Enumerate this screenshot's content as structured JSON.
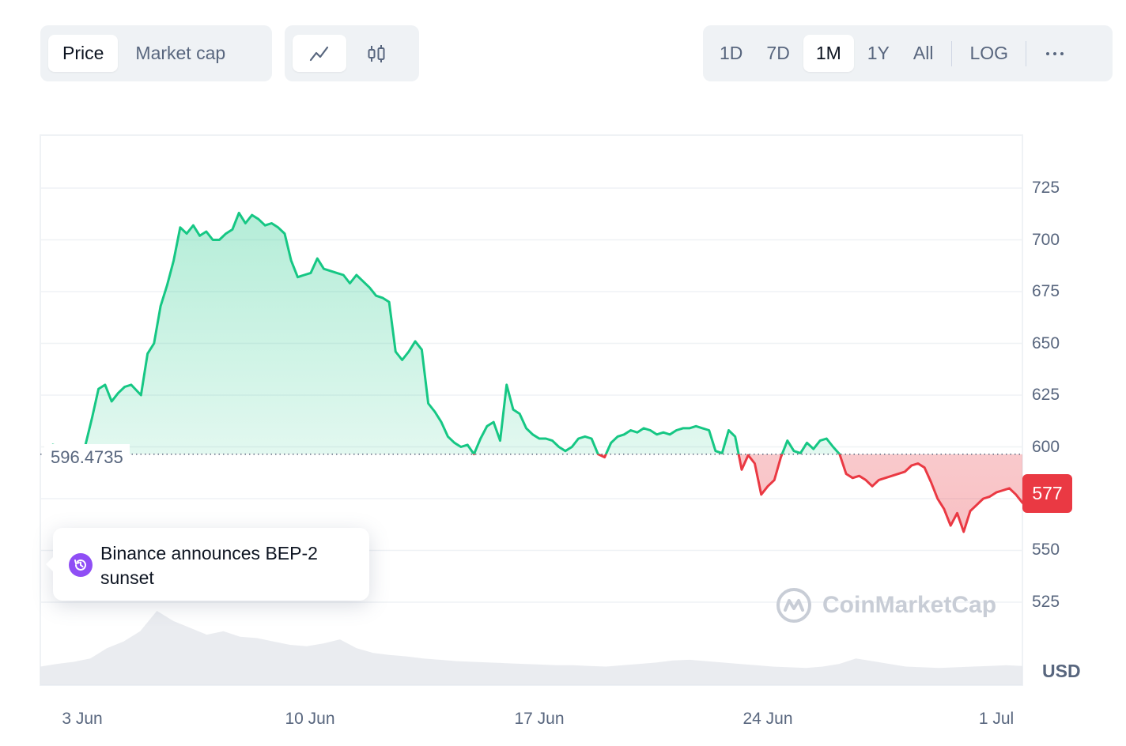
{
  "toolbar": {
    "price_label": "Price",
    "market_cap_label": "Market cap",
    "line_icon": "line-chart-icon",
    "candle_icon": "candlestick-icon",
    "ranges": [
      "1D",
      "7D",
      "1M",
      "1Y",
      "All"
    ],
    "active_range": "1M",
    "log_label": "LOG",
    "more_icon": "more-dots-icon"
  },
  "tooltip": {
    "icon": "history-clock-icon",
    "text": "Binance announces BEP-2 sunset"
  },
  "current_price_tag": "577",
  "watermark": "CoinMarketCap",
  "currency": "USD",
  "colors": {
    "up": "#16c784",
    "down": "#ea3943",
    "accent_event": "#8f4ef5",
    "toolbar_bg": "#eff2f5"
  },
  "chart_data": {
    "type": "line",
    "baseline_label": "596.4735",
    "baseline": 596.4735,
    "ylim": [
      500,
      737
    ],
    "y_ticks": [
      "725",
      "700",
      "675",
      "650",
      "625",
      "600",
      "575",
      "550",
      "525"
    ],
    "x_tick_labels": [
      "3 Jun",
      "10 Jun",
      "17 Jun",
      "24 Jun",
      "1 Jul"
    ],
    "x_tick_days": [
      0,
      7,
      14,
      21,
      28
    ],
    "xlim_days": [
      -1.1,
      29
    ],
    "series": [
      {
        "values_day_price": [
          [
            -1.1,
            596.5
          ],
          [
            -0.9,
            601
          ],
          [
            -0.7,
            600
          ],
          [
            -0.5,
            597.5
          ],
          [
            -0.3,
            598
          ],
          [
            -0.1,
            597
          ],
          [
            0.1,
            601
          ],
          [
            0.3,
            614
          ],
          [
            0.5,
            628
          ],
          [
            0.7,
            630
          ],
          [
            0.9,
            622
          ],
          [
            1.1,
            626
          ],
          [
            1.3,
            629
          ],
          [
            1.5,
            630
          ],
          [
            1.8,
            625
          ],
          [
            2.0,
            645
          ],
          [
            2.2,
            650
          ],
          [
            2.4,
            668
          ],
          [
            2.6,
            678
          ],
          [
            2.8,
            690
          ],
          [
            3.0,
            706
          ],
          [
            3.2,
            703
          ],
          [
            3.4,
            707
          ],
          [
            3.6,
            702
          ],
          [
            3.8,
            704
          ],
          [
            4.0,
            700
          ],
          [
            4.2,
            700
          ],
          [
            4.4,
            703
          ],
          [
            4.6,
            705
          ],
          [
            4.8,
            713
          ],
          [
            5.0,
            708
          ],
          [
            5.2,
            712
          ],
          [
            5.4,
            710
          ],
          [
            5.6,
            707
          ],
          [
            5.8,
            708
          ],
          [
            6.0,
            706
          ],
          [
            6.2,
            703
          ],
          [
            6.4,
            690
          ],
          [
            6.6,
            682
          ],
          [
            6.8,
            683
          ],
          [
            7.0,
            684
          ],
          [
            7.2,
            691
          ],
          [
            7.4,
            686
          ],
          [
            7.6,
            685
          ],
          [
            7.8,
            684
          ],
          [
            8.0,
            683
          ],
          [
            8.2,
            679
          ],
          [
            8.4,
            683
          ],
          [
            8.6,
            680
          ],
          [
            8.8,
            677
          ],
          [
            9.0,
            673
          ],
          [
            9.2,
            672
          ],
          [
            9.4,
            670
          ],
          [
            9.6,
            646
          ],
          [
            9.8,
            642
          ],
          [
            10.0,
            646
          ],
          [
            10.2,
            651
          ],
          [
            10.4,
            647
          ],
          [
            10.6,
            621
          ],
          [
            10.8,
            617
          ],
          [
            11.0,
            612
          ],
          [
            11.2,
            605
          ],
          [
            11.4,
            602
          ],
          [
            11.6,
            600
          ],
          [
            11.8,
            601
          ],
          [
            12.0,
            596.5
          ],
          [
            12.2,
            604
          ],
          [
            12.4,
            610
          ],
          [
            12.6,
            612
          ],
          [
            12.8,
            603
          ],
          [
            13.0,
            630
          ],
          [
            13.2,
            618
          ],
          [
            13.4,
            616
          ],
          [
            13.6,
            609
          ],
          [
            13.8,
            606
          ],
          [
            14.0,
            604
          ],
          [
            14.2,
            604
          ],
          [
            14.4,
            603
          ],
          [
            14.6,
            600
          ],
          [
            14.8,
            598
          ],
          [
            15.0,
            600
          ],
          [
            15.2,
            604
          ],
          [
            15.4,
            605
          ],
          [
            15.6,
            604
          ],
          [
            15.8,
            596.5
          ],
          [
            16.0,
            595
          ],
          [
            16.2,
            602
          ],
          [
            16.4,
            605
          ],
          [
            16.6,
            606
          ],
          [
            16.8,
            608
          ],
          [
            17.0,
            607
          ],
          [
            17.2,
            609
          ],
          [
            17.4,
            608
          ],
          [
            17.6,
            606
          ],
          [
            17.8,
            607
          ],
          [
            18.0,
            606
          ],
          [
            18.2,
            608
          ],
          [
            18.4,
            609
          ],
          [
            18.6,
            609
          ],
          [
            18.8,
            610
          ],
          [
            19.0,
            609
          ],
          [
            19.2,
            608
          ],
          [
            19.4,
            598
          ],
          [
            19.6,
            597
          ],
          [
            19.8,
            608
          ],
          [
            20.0,
            605
          ],
          [
            20.2,
            589
          ],
          [
            20.4,
            596
          ],
          [
            20.6,
            592
          ],
          [
            20.8,
            577
          ],
          [
            21.0,
            581
          ],
          [
            21.2,
            584
          ],
          [
            21.4,
            595
          ],
          [
            21.6,
            603
          ],
          [
            21.8,
            598
          ],
          [
            22.0,
            597
          ],
          [
            22.2,
            602
          ],
          [
            22.4,
            599
          ],
          [
            22.6,
            603
          ],
          [
            22.8,
            604
          ],
          [
            23.0,
            600
          ],
          [
            23.2,
            596.5
          ],
          [
            23.4,
            587
          ],
          [
            23.6,
            585
          ],
          [
            23.8,
            586
          ],
          [
            24.0,
            584
          ],
          [
            24.2,
            581
          ],
          [
            24.4,
            584
          ],
          [
            24.6,
            585
          ],
          [
            24.8,
            586
          ],
          [
            25.0,
            587
          ],
          [
            25.2,
            588
          ],
          [
            25.4,
            591
          ],
          [
            25.6,
            592
          ],
          [
            25.8,
            590
          ],
          [
            26.0,
            583
          ],
          [
            26.2,
            575
          ],
          [
            26.4,
            570
          ],
          [
            26.6,
            562
          ],
          [
            26.8,
            568
          ],
          [
            27.0,
            559
          ],
          [
            27.2,
            569
          ],
          [
            27.4,
            572
          ],
          [
            27.6,
            575
          ],
          [
            27.8,
            576
          ],
          [
            28.0,
            578
          ],
          [
            28.2,
            579
          ],
          [
            28.4,
            580
          ],
          [
            28.6,
            577
          ],
          [
            28.8,
            573
          ],
          [
            29.0,
            577
          ]
        ]
      }
    ],
    "volume_relative": [
      0.18,
      0.22,
      0.25,
      0.3,
      0.45,
      0.55,
      0.7,
      1.0,
      0.85,
      0.75,
      0.65,
      0.7,
      0.62,
      0.6,
      0.55,
      0.5,
      0.48,
      0.52,
      0.58,
      0.45,
      0.38,
      0.35,
      0.33,
      0.3,
      0.28,
      0.26,
      0.25,
      0.24,
      0.23,
      0.22,
      0.21,
      0.2,
      0.2,
      0.19,
      0.18,
      0.2,
      0.22,
      0.24,
      0.27,
      0.28,
      0.26,
      0.24,
      0.22,
      0.2,
      0.18,
      0.17,
      0.16,
      0.18,
      0.22,
      0.3,
      0.26,
      0.22,
      0.18,
      0.17,
      0.16,
      0.17,
      0.18,
      0.19,
      0.2,
      0.19
    ]
  }
}
